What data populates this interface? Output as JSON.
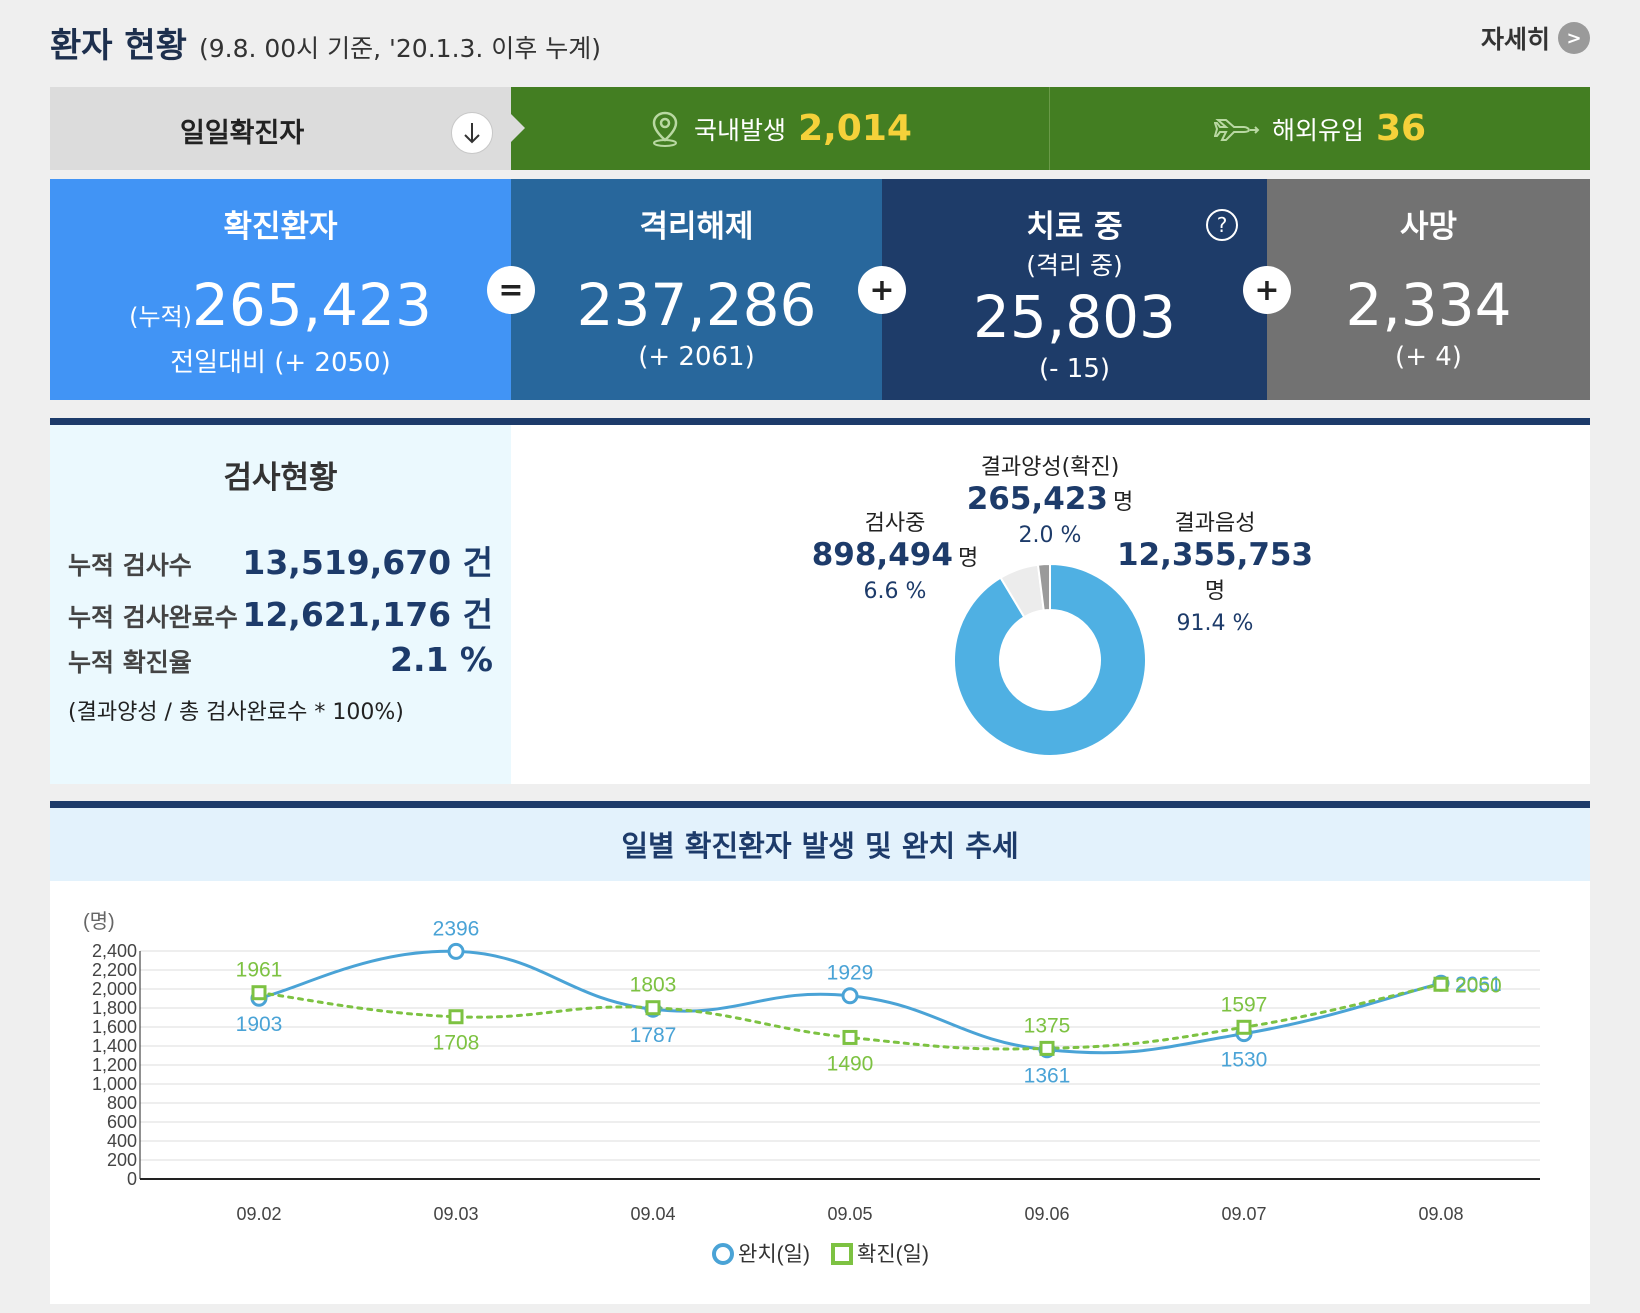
{
  "header": {
    "title": "환자 현황",
    "subtitle": "(9.8. 00시 기준, '20.1.3. 이후 누계)",
    "detail_label": "자세히"
  },
  "daily": {
    "label": "일일확진자",
    "domestic_label": "국내발생",
    "domestic_value": "2,014",
    "overseas_label": "해외유입",
    "overseas_value": "36"
  },
  "stats": {
    "confirmed": {
      "title": "확진환자",
      "prefix": "(누적)",
      "value": "265,423",
      "delta": "전일대비 (+ 2050)"
    },
    "released": {
      "title": "격리해제",
      "value": "237,286",
      "delta": "(+ 2061)"
    },
    "treatment": {
      "title": "치료 중",
      "subtitle": "(격리 중)",
      "value": "25,803",
      "delta": "(- 15)"
    },
    "death": {
      "title": "사망",
      "value": "2,334",
      "delta": "(+ 4)"
    },
    "op_equal": "=",
    "op_plus": "+",
    "help": "?"
  },
  "tests": {
    "title": "검사현황",
    "rows": [
      {
        "label": "누적 검사수",
        "value": "13,519,670 건"
      },
      {
        "label": "누적 검사완료수",
        "value": "12,621,176 건"
      },
      {
        "label": "누적 확진율",
        "value": "2.1 %"
      }
    ],
    "note": "(결과양성 / 총 검사완료수 * 100%)",
    "pie": [
      {
        "name": "결과음성",
        "count": "12,355,753",
        "unit": "명",
        "percent": "91.4 %",
        "share": 91.4,
        "color": "#4fb0e3"
      },
      {
        "name": "검사중",
        "count": "898,494",
        "unit": "명",
        "percent": "6.6 %",
        "share": 6.6,
        "color": "#ececec"
      },
      {
        "name": "결과양성(확진)",
        "count": "265,423",
        "unit": "명",
        "percent": "2.0 %",
        "share": 2.0,
        "color": "#9a9a9a"
      }
    ]
  },
  "trend": {
    "title": "일별 확진환자 발생 및 완치 추세",
    "y_unit": "(명)",
    "legend_released": "완치(일)",
    "legend_confirmed": "확진(일)"
  },
  "chart_data": {
    "type": "line",
    "title": "일별 확진환자 발생 및 완치 추세",
    "ylabel": "(명)",
    "x": [
      "09.02",
      "09.03",
      "09.04",
      "09.05",
      "09.06",
      "09.07",
      "09.08"
    ],
    "ylim": [
      0,
      2400
    ],
    "yticks": [
      "0",
      "200",
      "400",
      "600",
      "800",
      "1,000",
      "1,200",
      "1,400",
      "1,600",
      "1,800",
      "2,000",
      "2,200",
      "2,400"
    ],
    "grid": true,
    "legend_position": "bottom",
    "series": [
      {
        "name": "완치(일)",
        "values": [
          1903,
          2396,
          1787,
          1929,
          1361,
          1530,
          2061
        ],
        "color": "#4aa3d6",
        "style": "solid",
        "marker": "circle"
      },
      {
        "name": "확진(일)",
        "values": [
          1961,
          1708,
          1803,
          1490,
          1375,
          1597,
          2050
        ],
        "color": "#7dc242",
        "style": "dotted",
        "marker": "square"
      }
    ]
  }
}
